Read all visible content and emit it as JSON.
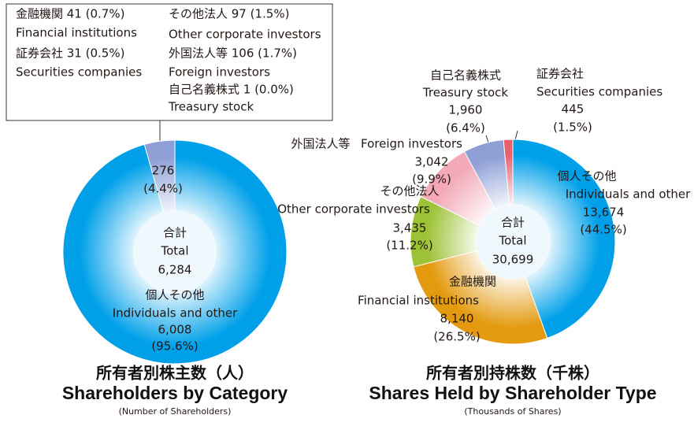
{
  "chart_data": [
    {
      "type": "donut",
      "title_ja": "所有者別株主数（人）",
      "title": "Shareholders by Category",
      "subtitle": "(Number of Shareholders)",
      "center_label_ja": "合計",
      "center_label": "Total",
      "total": 6284,
      "total_label": "6,284",
      "categories_ja": [
        "個人その他",
        null
      ],
      "categories": [
        "Individuals and other",
        null
      ],
      "values": [
        6008,
        276
      ],
      "value_labels": [
        "6,008",
        "276"
      ],
      "percents": [
        95.6,
        4.4
      ],
      "percent_labels": [
        "(95.6%)",
        "(4.4%)"
      ],
      "colors": [
        "#00a0e9",
        "#8e9fd6"
      ],
      "breakdown": [
        {
          "ja": "金融機関 41 (0.7%)",
          "en": "Financial institutions"
        },
        {
          "ja": "証券会社 31 (0.5%)",
          "en": "Securities companies"
        },
        {
          "ja": "その他法人 97 (1.5%)",
          "en": "Other corporate investors"
        },
        {
          "ja": "外国法人等 106 (1.7%)",
          "en": "Foreign investors"
        },
        {
          "ja": "自己名義株式 1 (0.0%)",
          "en": "Treasury stock"
        }
      ]
    },
    {
      "type": "donut",
      "title_ja": "所有者別持株数（千株）",
      "title": "Shares Held by Shareholder Type",
      "subtitle": "(Thousands of Shares)",
      "center_label_ja": "合計",
      "center_label": "Total",
      "total": 30699,
      "total_label": "30,699",
      "categories_ja": [
        "個人その他",
        "金融機関",
        "その他法人",
        "外国法人等",
        "自己名義株式",
        "証券会社"
      ],
      "categories": [
        "Individuals and other",
        "Financial institutions",
        "Other corporate investors",
        "Foreign investors",
        "Treasury stock",
        "Securities companies"
      ],
      "values": [
        13674,
        8140,
        3435,
        3042,
        1960,
        445
      ],
      "value_labels": [
        "13,674",
        "8,140",
        "3,435",
        "3,042",
        "1,960",
        "445"
      ],
      "percents": [
        44.5,
        26.5,
        11.2,
        9.9,
        6.4,
        1.5
      ],
      "percent_labels": [
        "(44.5%)",
        "(26.5%)",
        "(11.2%)",
        "(9.9%)",
        "(6.4%)",
        "(1.5%)"
      ],
      "colors": [
        "#00a0e9",
        "#e39a0e",
        "#9cc235",
        "#f3a9b8",
        "#8e9fd6",
        "#e8606e"
      ]
    }
  ]
}
